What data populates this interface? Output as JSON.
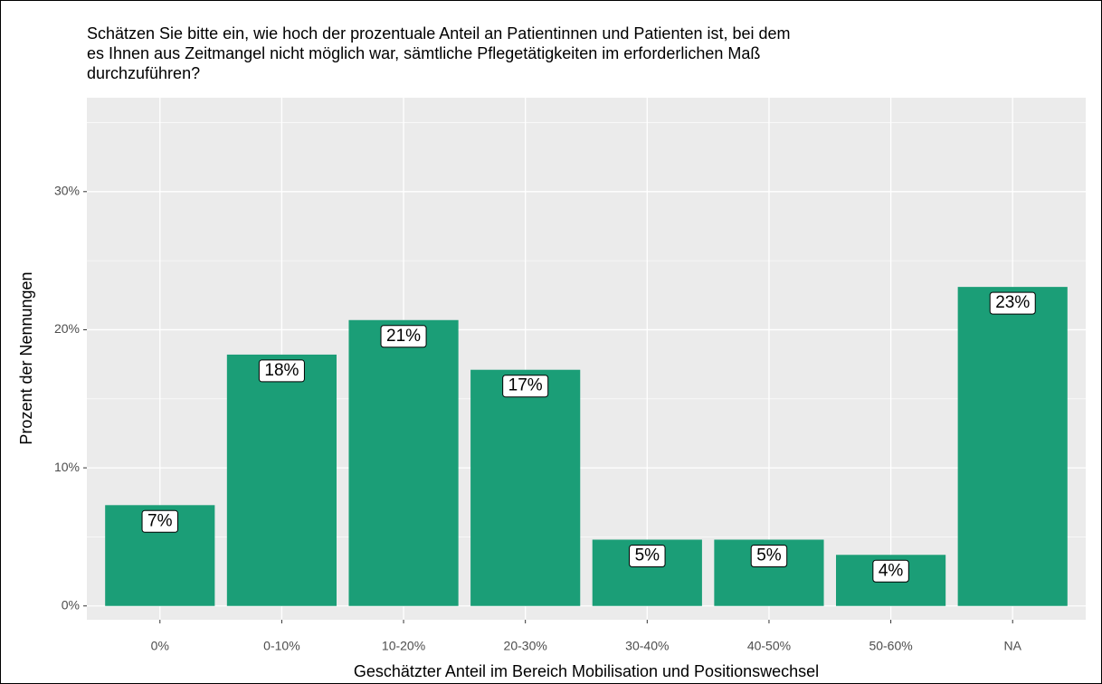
{
  "chart_data": {
    "type": "bar",
    "title": [
      "Schätzen Sie bitte ein, wie hoch der prozentuale Anteil an Patientinnen und Patienten ist, bei dem",
      "es Ihnen aus Zeitmangel nicht möglich war, sämtliche Pflegetätigkeiten im erforderlichen Maß",
      "durchzuführen?"
    ],
    "x_label": "Geschätzter Anteil im Bereich Mobilisation und Positionswechsel",
    "y_label": "Prozent der Nennungen",
    "categories": [
      "0%",
      "0-10%",
      "10-20%",
      "20-30%",
      "30-40%",
      "40-50%",
      "50-60%",
      "NA"
    ],
    "values": [
      7.3,
      18.2,
      20.7,
      17.1,
      4.8,
      4.8,
      3.7,
      23.1
    ],
    "value_labels": [
      "7%",
      "18%",
      "21%",
      "17%",
      "5%",
      "5%",
      "4%",
      "23%"
    ],
    "color": "#1b9e77",
    "ylim": [
      -1.0,
      36.8
    ],
    "yticks": [
      {
        "value": 0,
        "label": "0%"
      },
      {
        "value": 10,
        "label": "10%"
      },
      {
        "value": 20,
        "label": "20%"
      },
      {
        "value": 30,
        "label": "30%"
      }
    ],
    "grid": true
  }
}
